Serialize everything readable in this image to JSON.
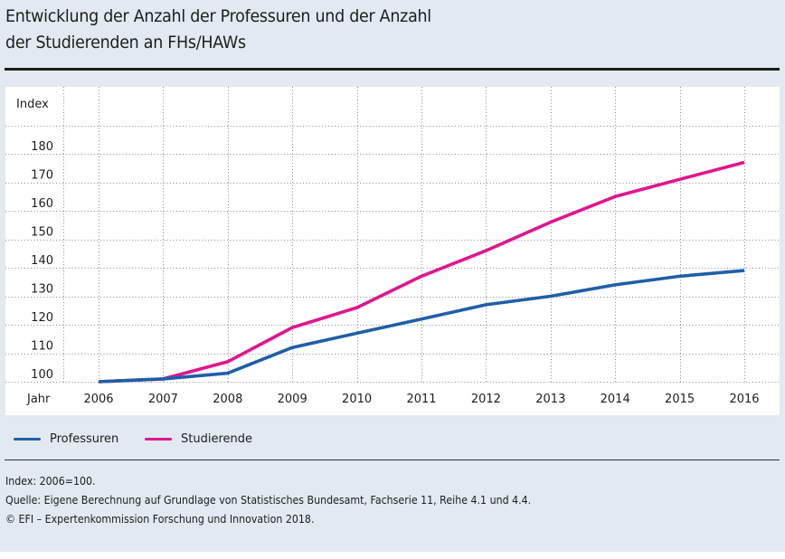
{
  "title_lines": [
    "Entwicklung der Anzahl der Professuren und der Anzahl",
    "der Studierenden an FHs/HAWs"
  ],
  "chart_data": {
    "type": "line",
    "title": "Entwicklung der Anzahl der Professuren und der Anzahl der Studierenden an FHs/HAWs",
    "xlabel": "Jahr",
    "ylabel": "Index",
    "x": [
      "2006",
      "2007",
      "2008",
      "2009",
      "2010",
      "2011",
      "2012",
      "2013",
      "2014",
      "2015",
      "2016"
    ],
    "yticks": [
      100,
      110,
      120,
      130,
      140,
      150,
      160,
      170,
      180
    ],
    "ylim": [
      100,
      190
    ],
    "grid": true,
    "legend_position": "bottom-left",
    "series": [
      {
        "name": "Professuren",
        "color": "#1f5fa8",
        "values": [
          100,
          101,
          103,
          112,
          117,
          122,
          127,
          130,
          134,
          137,
          139
        ]
      },
      {
        "name": "Studierende",
        "color": "#e0168f",
        "values": [
          100,
          101,
          107,
          119,
          126,
          137,
          146,
          156,
          165,
          171,
          177
        ]
      }
    ]
  },
  "notes": [
    "Index: 2006=100.",
    "Quelle: Eigene Berechnung auf Grundlage von Statistisches Bundesamt, Fachserie 11, Reihe 4.1 und 4.4.",
    "© EFI – Expertenkommission Forschung und Innovation 2018."
  ]
}
